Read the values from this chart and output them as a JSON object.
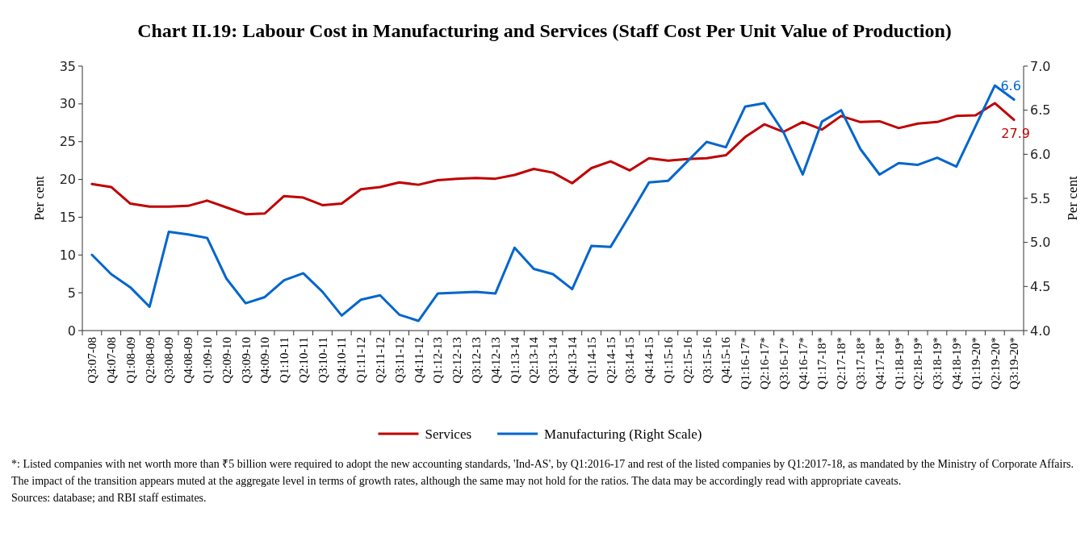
{
  "chart_data": {
    "type": "line",
    "title": "Chart II.19: Labour Cost in Manufacturing and Services (Staff Cost Per Unit Value of Production)",
    "categories": [
      "Q3:07-08",
      "Q4:07-08",
      "Q1:08-09",
      "Q2:08-09",
      "Q3:08-09",
      "Q4:08-09",
      "Q1:09-10",
      "Q2:09-10",
      "Q3:09-10",
      "Q4:09-10",
      "Q1:10-11",
      "Q2:10-11",
      "Q3:10-11",
      "Q4:10-11",
      "Q1:11-12",
      "Q2:11-12",
      "Q3:11-12",
      "Q4:11-12",
      "Q1:12-13",
      "Q2:12-13",
      "Q3:12-13",
      "Q4:12-13",
      "Q1:13-14",
      "Q2:13-14",
      "Q3:13-14",
      "Q4:13-14",
      "Q1:14-15",
      "Q2:14-15",
      "Q3:14-15",
      "Q4:14-15",
      "Q1:15-16",
      "Q2:15-16",
      "Q3:15-16",
      "Q4:15-16",
      "Q1:16-17*",
      "Q2:16-17*",
      "Q3:16-17*",
      "Q4:16-17*",
      "Q1:17-18*",
      "Q2:17-18*",
      "Q3:17-18*",
      "Q4:17-18*",
      "Q1:18-19*",
      "Q2:18-19*",
      "Q3:18-19*",
      "Q4:18-19*",
      "Q1:19-20*",
      "Q2:19-20*",
      "Q3:19-20*"
    ],
    "series": [
      {
        "name": "Services",
        "color": "#c00000",
        "values": [
          19.4,
          19.0,
          16.8,
          16.4,
          16.4,
          16.5,
          17.2,
          16.3,
          15.4,
          15.5,
          17.8,
          17.6,
          16.6,
          16.8,
          18.7,
          19.0,
          19.6,
          19.3,
          19.9,
          20.1,
          20.2,
          20.1,
          20.6,
          21.4,
          20.9,
          19.5,
          21.5,
          22.4,
          21.2,
          22.8,
          22.5,
          22.7,
          22.8,
          23.2,
          25.6,
          27.3,
          26.3,
          27.6,
          26.6,
          28.4,
          27.6,
          27.7,
          26.8,
          27.4,
          27.6,
          28.4,
          28.5,
          30.1,
          27.9
        ],
        "value_labels": [
          null,
          null,
          null,
          null,
          null,
          null,
          null,
          null,
          null,
          null,
          null,
          null,
          null,
          null,
          null,
          null,
          null,
          null,
          null,
          null,
          null,
          null,
          null,
          null,
          null,
          null,
          null,
          null,
          null,
          null,
          null,
          null,
          null,
          null,
          null,
          null,
          null,
          null,
          null,
          null,
          null,
          null,
          null,
          null,
          null,
          null,
          null,
          null,
          "27.9"
        ]
      },
      {
        "name": "Manufacturing (Right Scale)",
        "color": "#0066cc",
        "axis": "y2",
        "values": [
          4.86,
          4.64,
          4.49,
          4.27,
          5.12,
          5.09,
          5.05,
          4.59,
          4.31,
          4.38,
          4.57,
          4.65,
          4.44,
          4.17,
          4.35,
          4.4,
          4.18,
          4.11,
          4.42,
          4.43,
          4.44,
          4.42,
          4.94,
          4.7,
          4.64,
          4.47,
          4.96,
          4.95,
          5.31,
          5.68,
          5.7,
          5.92,
          6.14,
          6.08,
          6.54,
          6.58,
          6.25,
          5.77,
          6.37,
          6.5,
          6.06,
          5.77,
          5.9,
          5.88,
          5.96,
          5.86,
          6.32,
          6.78,
          6.62
        ],
        "value_labels": [
          null,
          null,
          null,
          null,
          null,
          null,
          null,
          null,
          null,
          null,
          null,
          null,
          null,
          null,
          null,
          null,
          null,
          null,
          null,
          null,
          null,
          null,
          null,
          null,
          null,
          null,
          null,
          null,
          null,
          null,
          null,
          null,
          null,
          null,
          null,
          null,
          null,
          null,
          null,
          null,
          null,
          null,
          null,
          null,
          null,
          null,
          null,
          null,
          "6.6"
        ]
      }
    ],
    "ylabel": "Per cent",
    "y2label": "Per cent",
    "ylim": [
      0,
      35
    ],
    "yticks": [
      0,
      5,
      10,
      15,
      20,
      25,
      30,
      35
    ],
    "y2lim": [
      4,
      7
    ],
    "y2ticks": [
      {
        "value": 4,
        "label": "4.0"
      },
      {
        "value": 4.5,
        "label": "4.5"
      },
      {
        "value": 5,
        "label": "5.0"
      },
      {
        "value": 5.5,
        "label": "5.5"
      },
      {
        "value": 6,
        "label": "6.0"
      },
      {
        "value": 6.5,
        "label": "6.5"
      },
      {
        "value": 7,
        "label": "7.0"
      }
    ],
    "legend": "bottom",
    "grid": false,
    "marker": "none",
    "line_style": "solid",
    "annotations": [
      "*: Listed companies with net worth more than ₹5 billion were required to adopt the new accounting standards, 'Ind-AS', by Q1:2016-17 and rest of the listed companies by Q1:2017-18, as mandated by the Ministry of Corporate Affairs. The impact of the transition appears muted at the aggregate level in terms of growth rates, although the same may not hold for the ratios. The data may be accordingly read with appropriate caveats.",
      "Sources: database; and RBI staff estimates."
    ]
  }
}
